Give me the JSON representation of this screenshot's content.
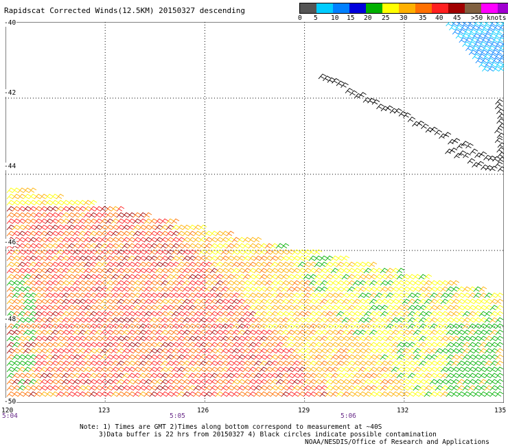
{
  "title": "Rapidscat Corrected Winds(12.5KM) 20150327 descending",
  "legend": {
    "colors": [
      "#555555",
      "#00ccff",
      "#0080ff",
      "#0000dd",
      "#00b000",
      "#ffff00",
      "#ffb000",
      "#ff7000",
      "#ff2020",
      "#a00000",
      "#806040",
      "#ff00ff",
      "#a000d0",
      "#500080"
    ],
    "labels": [
      "0",
      "5",
      "10",
      "15",
      "20",
      "25",
      "30",
      "35",
      "40",
      "45",
      ">50 knots"
    ]
  },
  "map": {
    "lon_min": 120,
    "lon_max": 135,
    "lat_min": -50,
    "lat_max": -40,
    "lon_gridlines": [
      123,
      126,
      129,
      132
    ],
    "lat_gridlines": [
      -42,
      -44,
      -46,
      -48
    ],
    "lat_labels": [
      "-40",
      "-42",
      "-44",
      "-46",
      "-48",
      "-50"
    ],
    "lon_labels": [
      "120",
      "123",
      "126",
      "129",
      "132",
      "135"
    ],
    "time_labels": [
      "5:04",
      "5:05",
      "5:06"
    ]
  },
  "footer": {
    "note_line1": "Note: 1) Times are GMT 2)Times along bottom correspond to measurement at ~40S",
    "note_line2": "3)Data buffer is 22 hrs from 20150327 4) Black circles indicate possible contamination",
    "credit": "NOAA/NESDIS/Office of Research and Applications"
  }
}
